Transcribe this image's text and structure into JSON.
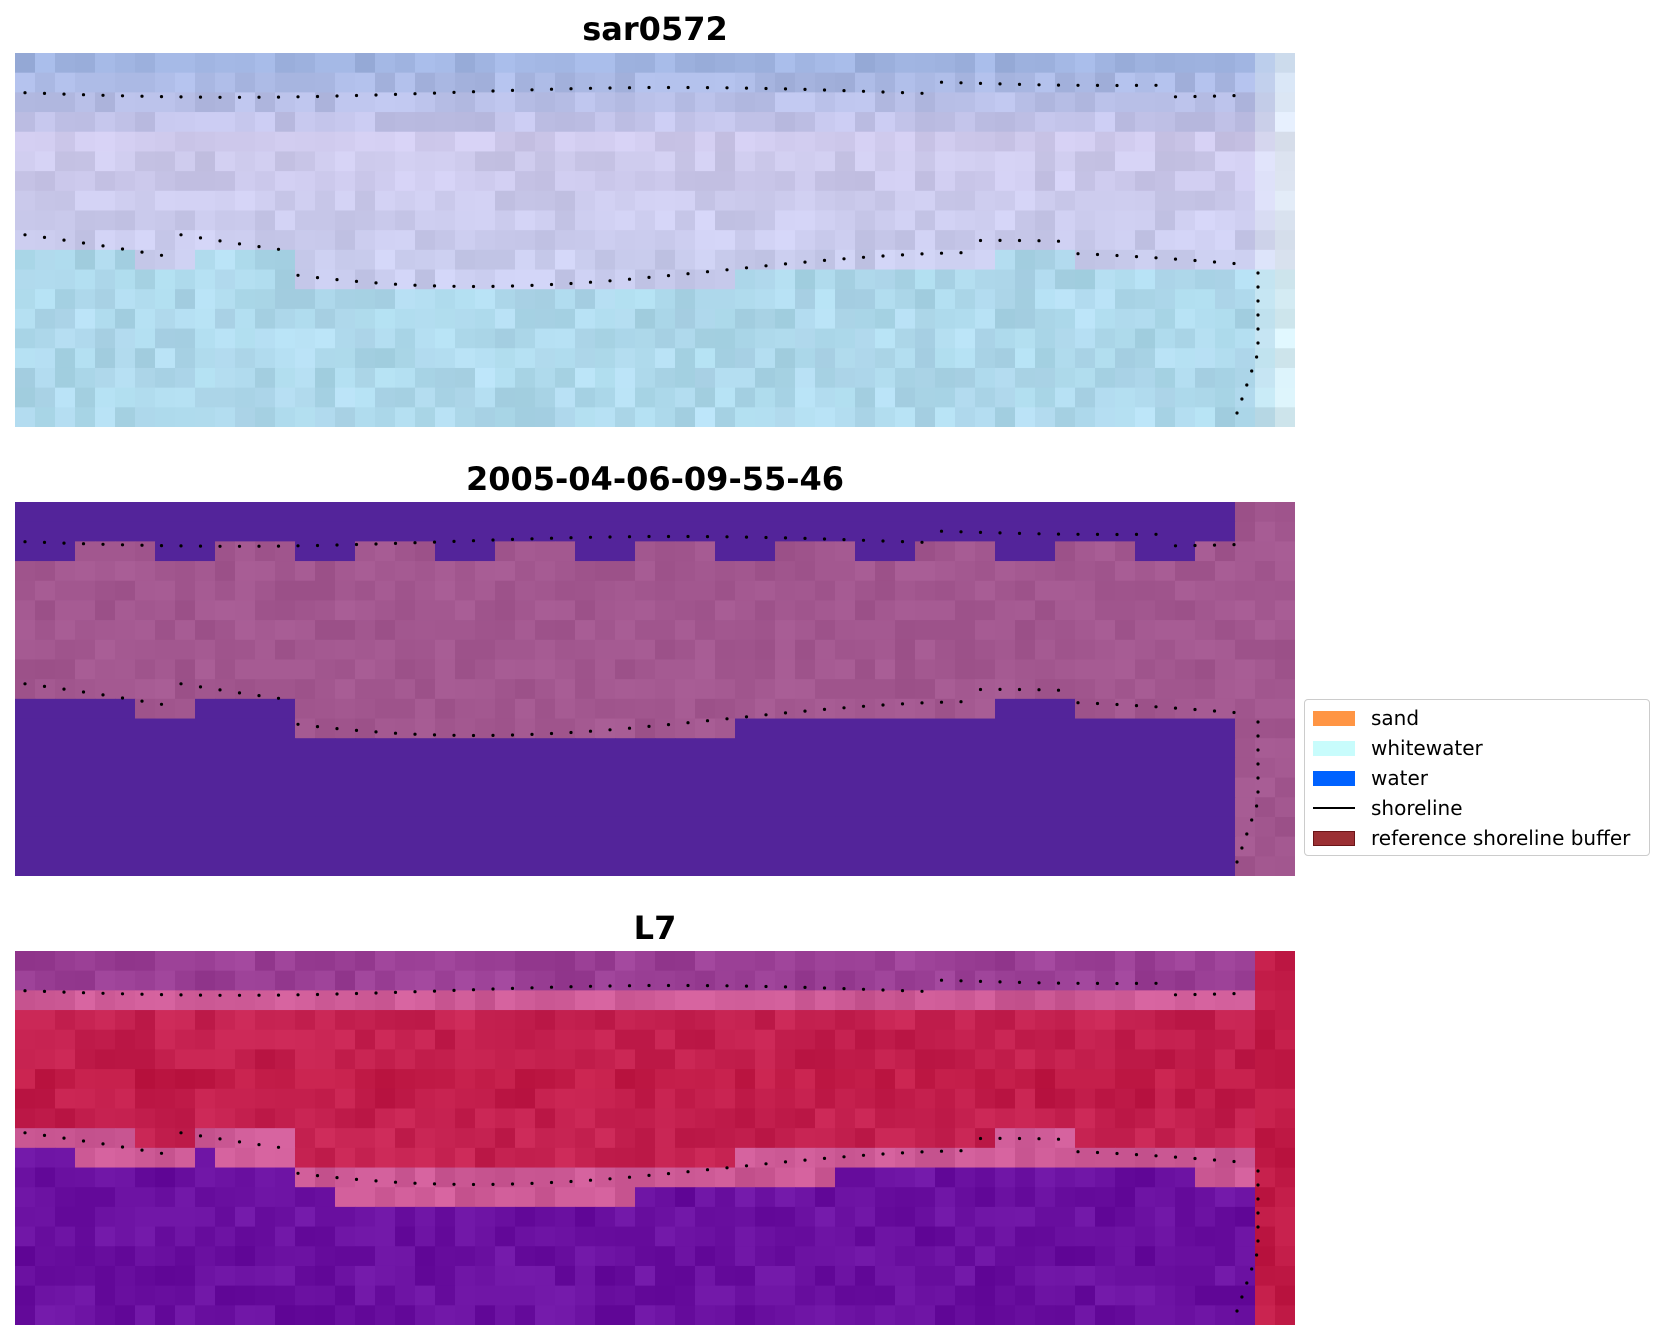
{
  "panels": [
    {
      "title": "sar0572",
      "style": "rgb"
    },
    {
      "title": "2005-04-06-09-55-46",
      "style": "classified"
    },
    {
      "title": "L7",
      "style": "index"
    }
  ],
  "legend": {
    "items": [
      {
        "label": "sand",
        "kind": "patch",
        "color": "#ff9544"
      },
      {
        "label": "whitewater",
        "kind": "patch",
        "color": "#c8fcfc"
      },
      {
        "label": "water",
        "kind": "patch",
        "color": "#0062ff"
      },
      {
        "label": "shoreline",
        "kind": "line",
        "color": "#000000"
      },
      {
        "label": "reference shoreline buffer",
        "kind": "patch",
        "color": "#9b3034",
        "edge": "#6b1518"
      }
    ]
  },
  "colors": {
    "classified_water": "#53249a",
    "classified_buffer": "#a2578f",
    "index_top": "#9a3f95",
    "index_band": "#c01a46",
    "index_water": "#6a10a0",
    "rgb_base": "#a7b9e2"
  }
}
